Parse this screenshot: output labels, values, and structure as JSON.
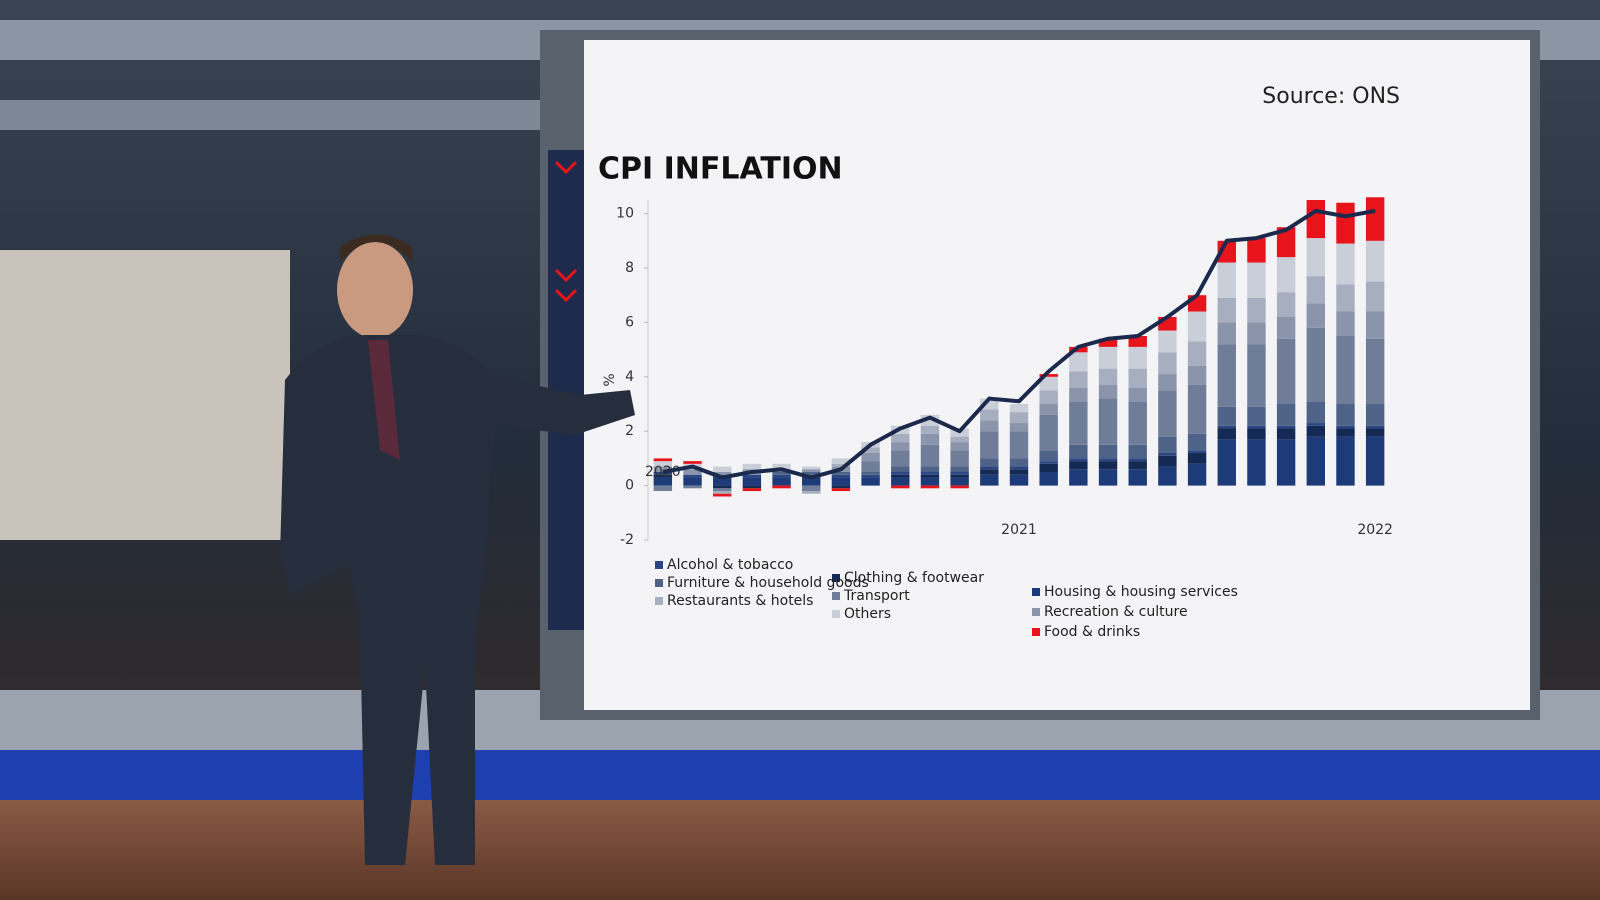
{
  "chart_data": {
    "type": "stacked-bar-line",
    "title": "CPI INFLATION",
    "source": "Source: ONS",
    "y_label": "%",
    "categories": [
      "2020",
      null,
      null,
      null,
      null,
      null,
      null,
      null,
      null,
      null,
      null,
      null,
      "2021",
      null,
      null,
      null,
      null,
      null,
      null,
      null,
      null,
      null,
      null,
      null,
      "2022"
    ],
    "ylim": [
      -2,
      10.5
    ],
    "yticks": [
      -2,
      0,
      2,
      4,
      6,
      8,
      10
    ],
    "grid": false,
    "series": [
      {
        "name": "Housing & housing services",
        "color": "#1d3b78",
        "values": [
          0.3,
          0.3,
          0.3,
          0.3,
          0.3,
          0.3,
          0.3,
          0.3,
          0.3,
          0.3,
          0.3,
          0.4,
          0.4,
          0.5,
          0.6,
          0.6,
          0.6,
          0.7,
          0.8,
          1.7,
          1.7,
          1.7,
          1.8,
          1.8,
          1.8
        ]
      },
      {
        "name": "Clothing & footwear",
        "color": "#142a55",
        "values": [
          0.1,
          0,
          -0.1,
          -0.1,
          0,
          0,
          -0.1,
          0,
          0.1,
          0.1,
          0.1,
          0.2,
          0.2,
          0.3,
          0.3,
          0.3,
          0.3,
          0.4,
          0.4,
          0.4,
          0.4,
          0.4,
          0.4,
          0.3,
          0.3
        ]
      },
      {
        "name": "Alcohol & tobacco",
        "color": "#2b4683",
        "values": [
          0.1,
          0.1,
          0.1,
          0.1,
          0.1,
          0.1,
          0.1,
          0.1,
          0.1,
          0.1,
          0.1,
          0.1,
          0.1,
          0.1,
          0.1,
          0.1,
          0.1,
          0.1,
          0.1,
          0.1,
          0.1,
          0.1,
          0.1,
          0.1,
          0.1
        ]
      },
      {
        "name": "Furniture & household goods",
        "color": "#4f6288",
        "values": [
          0,
          0,
          0,
          0,
          0.1,
          0.1,
          0.1,
          0.1,
          0.2,
          0.2,
          0.2,
          0.3,
          0.3,
          0.4,
          0.5,
          0.5,
          0.5,
          0.6,
          0.6,
          0.7,
          0.7,
          0.8,
          0.8,
          0.8,
          0.8
        ]
      },
      {
        "name": "Transport",
        "color": "#6f7d99",
        "values": [
          -0.2,
          -0.1,
          -0.1,
          0,
          0,
          -0.2,
          0,
          0.4,
          0.6,
          0.8,
          0.6,
          1.0,
          1.0,
          1.3,
          1.6,
          1.7,
          1.6,
          1.7,
          1.8,
          2.3,
          2.3,
          2.4,
          2.7,
          2.5,
          2.4
        ]
      },
      {
        "name": "Recreation & culture",
        "color": "#8a94aa",
        "values": [
          0.2,
          0.2,
          0.1,
          0.2,
          0.1,
          0.1,
          0.2,
          0.3,
          0.3,
          0.4,
          0.3,
          0.4,
          0.3,
          0.4,
          0.5,
          0.5,
          0.5,
          0.6,
          0.7,
          0.8,
          0.8,
          0.8,
          0.9,
          0.9,
          1.0
        ]
      },
      {
        "name": "Restaurants & hotels",
        "color": "#a6aebf",
        "values": [
          0,
          0,
          -0.1,
          0,
          0,
          -0.1,
          0.1,
          0.2,
          0.3,
          0.3,
          0.2,
          0.4,
          0.4,
          0.5,
          0.6,
          0.6,
          0.7,
          0.8,
          0.9,
          0.9,
          0.9,
          0.9,
          1.0,
          1.0,
          1.1
        ]
      },
      {
        "name": "Others",
        "color": "#c9ced9",
        "values": [
          0.2,
          0.2,
          0.2,
          0.2,
          0.2,
          0.1,
          0.2,
          0.2,
          0.3,
          0.4,
          0.3,
          0.4,
          0.3,
          0.5,
          0.7,
          0.8,
          0.8,
          0.8,
          1.1,
          1.3,
          1.3,
          1.3,
          1.4,
          1.5,
          1.5
        ]
      },
      {
        "name": "Food & drinks",
        "color": "#e8141b",
        "values": [
          0.1,
          0.1,
          -0.1,
          -0.1,
          -0.1,
          0,
          -0.1,
          0,
          -0.1,
          -0.1,
          -0.1,
          0,
          0,
          0.1,
          0.2,
          0.3,
          0.4,
          0.5,
          0.6,
          0.8,
          0.9,
          1.1,
          1.4,
          1.5,
          1.6
        ]
      }
    ],
    "cpi_line": {
      "color": "#1b2a4c",
      "values": [
        0.5,
        0.7,
        0.3,
        0.5,
        0.6,
        0.3,
        0.6,
        1.5,
        2.1,
        2.5,
        2.0,
        3.2,
        3.1,
        4.2,
        5.1,
        5.4,
        5.5,
        6.2,
        7.0,
        9.0,
        9.1,
        9.4,
        10.1,
        9.9,
        10.1
      ]
    }
  }
}
